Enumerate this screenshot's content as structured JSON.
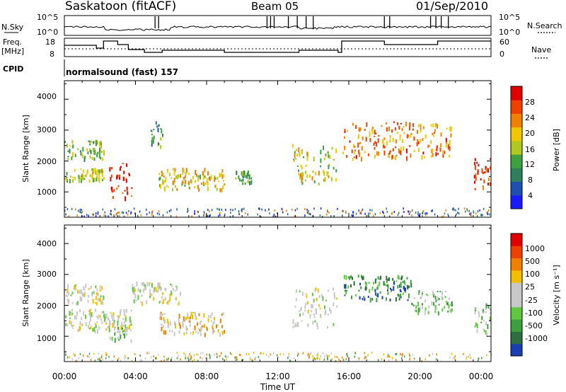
{
  "header": {
    "station": "Saskatoon (fitACF)",
    "beam": "Beam 05",
    "date": "01/Sep/2010",
    "cpid_label": "CPID",
    "cpid_value": "normalsound (fast) 157"
  },
  "aux_panels": {
    "nsky_label": "N.Sky",
    "nsky_ticks": [
      "10^5",
      "10^0"
    ],
    "nsearch_label": "N.Search",
    "nsearch_ticks": [
      "10^5",
      "10^0"
    ],
    "freq_label_line1": "Freq.",
    "freq_label_line2": "[MHz]",
    "freq_ticks": [
      "18",
      "8"
    ],
    "nave_label": "Nave",
    "nave_ticks": [
      "60",
      "0"
    ]
  },
  "x_axis": {
    "title": "Time UT",
    "ticks": [
      "00:00",
      "04:00",
      "08:00",
      "12:00",
      "16:00",
      "20:00",
      "00:00"
    ]
  },
  "power_panel": {
    "ylabel": "Slant Range [km]",
    "yticks": [
      "4000",
      "3000",
      "2000",
      "1000"
    ],
    "colorbar_label": "Power [dB]",
    "colorbar_ticks": [
      "28",
      "24",
      "20",
      "16",
      "12",
      "8",
      "4"
    ],
    "colors": [
      "#1a1aff",
      "#1f4fb0",
      "#2f7f5f",
      "#3fa040",
      "#b0c820",
      "#f0c800",
      "#f08000",
      "#f04000",
      "#e00000"
    ]
  },
  "velocity_panel": {
    "ylabel": "Slant Range [km]",
    "yticks": [
      "4000",
      "3000",
      "2000",
      "1000"
    ],
    "colorbar_label": "Velocity [m s⁻¹]",
    "colorbar_ticks": [
      "1000",
      "500",
      "100",
      "25",
      "-25",
      "-100",
      "-500",
      "-1000"
    ],
    "colors": [
      "#1a3fb0",
      "#2f6f3f",
      "#3f9f3f",
      "#5fc840",
      "#c8c8c8",
      "#c8c8c8",
      "#f0c000",
      "#f08000",
      "#f04000",
      "#e00000"
    ]
  },
  "chart_data": [
    {
      "type": "heatmap",
      "title": "Power",
      "xlabel": "Time UT",
      "ylabel": "Slant Range [km]",
      "x_range_hours": [
        0,
        24
      ],
      "ylim": [
        180,
        4600
      ],
      "colorbar": "Power [dB]",
      "colorbar_range": [
        0,
        30
      ],
      "blobs": [
        {
          "t0": 0.0,
          "t1": 2.2,
          "r0": 2100,
          "r1": 2700,
          "value": 14
        },
        {
          "t0": 0.0,
          "t1": 2.2,
          "r0": 1400,
          "r1": 1800,
          "value": 16
        },
        {
          "t0": 2.5,
          "t1": 3.8,
          "r0": 800,
          "r1": 2000,
          "value": 26
        },
        {
          "t0": 4.8,
          "t1": 5.5,
          "r0": 2500,
          "r1": 3300,
          "value": 10
        },
        {
          "t0": 5.3,
          "t1": 9.0,
          "r0": 1100,
          "r1": 1800,
          "value": 18
        },
        {
          "t0": 9.5,
          "t1": 10.5,
          "r0": 1300,
          "r1": 1700,
          "value": 12
        },
        {
          "t0": 12.8,
          "t1": 15.3,
          "r0": 1300,
          "r1": 2600,
          "value": 16
        },
        {
          "t0": 15.6,
          "t1": 21.8,
          "r0": 2100,
          "r1": 3300,
          "value": 22
        },
        {
          "t0": 23.0,
          "t1": 24.0,
          "r0": 1100,
          "r1": 2100,
          "value": 26
        }
      ]
    },
    {
      "type": "heatmap",
      "title": "Velocity",
      "xlabel": "Time UT",
      "ylabel": "Slant Range [km]",
      "x_range_hours": [
        0,
        24
      ],
      "ylim": [
        180,
        4600
      ],
      "colorbar": "Velocity [m s⁻¹]",
      "colorbar_range": [
        -1000,
        1000
      ],
      "blobs": [
        {
          "t0": 0.0,
          "t1": 2.2,
          "r0": 2100,
          "r1": 2700,
          "value": 60
        },
        {
          "t0": 0.0,
          "t1": 3.8,
          "r0": 1200,
          "r1": 1900,
          "value": 0
        },
        {
          "t0": 2.5,
          "t1": 3.8,
          "r0": 900,
          "r1": 1700,
          "value": -200
        },
        {
          "t0": 3.8,
          "t1": 6.5,
          "r0": 2100,
          "r1": 2800,
          "value": 0
        },
        {
          "t0": 5.3,
          "t1": 9.0,
          "r0": 1100,
          "r1": 1800,
          "value": 200
        },
        {
          "t0": 12.8,
          "t1": 15.3,
          "r0": 1300,
          "r1": 2600,
          "value": 0
        },
        {
          "t0": 15.6,
          "t1": 19.5,
          "r0": 2200,
          "r1": 3000,
          "value": -600
        },
        {
          "t0": 19.5,
          "t1": 21.8,
          "r0": 1800,
          "r1": 2500,
          "value": -300
        },
        {
          "t0": 23.0,
          "t1": 24.0,
          "r0": 1100,
          "r1": 2100,
          "value": -150
        }
      ]
    }
  ]
}
